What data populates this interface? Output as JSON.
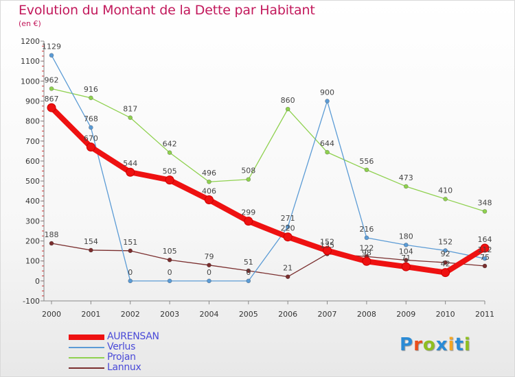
{
  "title": "Evolution du Montant de la Dette par Habitant",
  "subtitle": "(en €)",
  "logo": {
    "text": "Proxiti",
    "colors": [
      "#2a8bd6",
      "#e94e1b",
      "#8fbf21",
      "#2a8bd6",
      "#f5a623",
      "#2a8bd6",
      "#8fbf21"
    ]
  },
  "chart_data": {
    "type": "line",
    "x": [
      "2000",
      "2001",
      "2002",
      "2003",
      "2004",
      "2005",
      "2006",
      "2007",
      "2008",
      "2009",
      "2010",
      "2011"
    ],
    "ylim": [
      -100,
      1200
    ],
    "yticks": [
      -100,
      0,
      100,
      200,
      300,
      400,
      500,
      600,
      700,
      800,
      900,
      1000,
      1100,
      1200
    ],
    "grid": false,
    "legend_position": "bottom-left",
    "series": [
      {
        "name": "AURENSAN",
        "color": "#ee1111",
        "values": [
          867,
          670,
          544,
          505,
          406,
          299,
          220,
          152,
          98,
          71,
          42,
          164
        ]
      },
      {
        "name": "Verlus",
        "color": "#5b9bd5",
        "values": [
          1129,
          768,
          0,
          0,
          0,
          0,
          271,
          900,
          216,
          180,
          152,
          112
        ]
      },
      {
        "name": "Projan",
        "color": "#8fd14f",
        "values": [
          962,
          916,
          817,
          642,
          496,
          508,
          860,
          644,
          556,
          473,
          410,
          348
        ]
      },
      {
        "name": "Lannux",
        "color": "#7a2e2e",
        "values": [
          188,
          154,
          151,
          105,
          79,
          51,
          21,
          135,
          122,
          104,
          92,
          75
        ]
      }
    ],
    "labels": {
      "AURENSAN": [
        "867",
        "670",
        "544",
        "505",
        "406",
        "299",
        "220",
        "152",
        "98",
        "71",
        "42",
        "164"
      ],
      "Verlus": [
        "1129",
        "768",
        "0",
        "0",
        "0",
        "0",
        "271",
        "900",
        "216",
        "180",
        "152",
        "112"
      ],
      "Projan": [
        "962",
        "916",
        "817",
        "642",
        "496",
        "508",
        "860",
        "644",
        "556",
        "473",
        "410",
        "348"
      ],
      "Lannux": [
        "188",
        "154",
        "151",
        "105",
        "79",
        "51",
        "21",
        "135",
        "122",
        "104",
        "92",
        "75"
      ]
    }
  }
}
